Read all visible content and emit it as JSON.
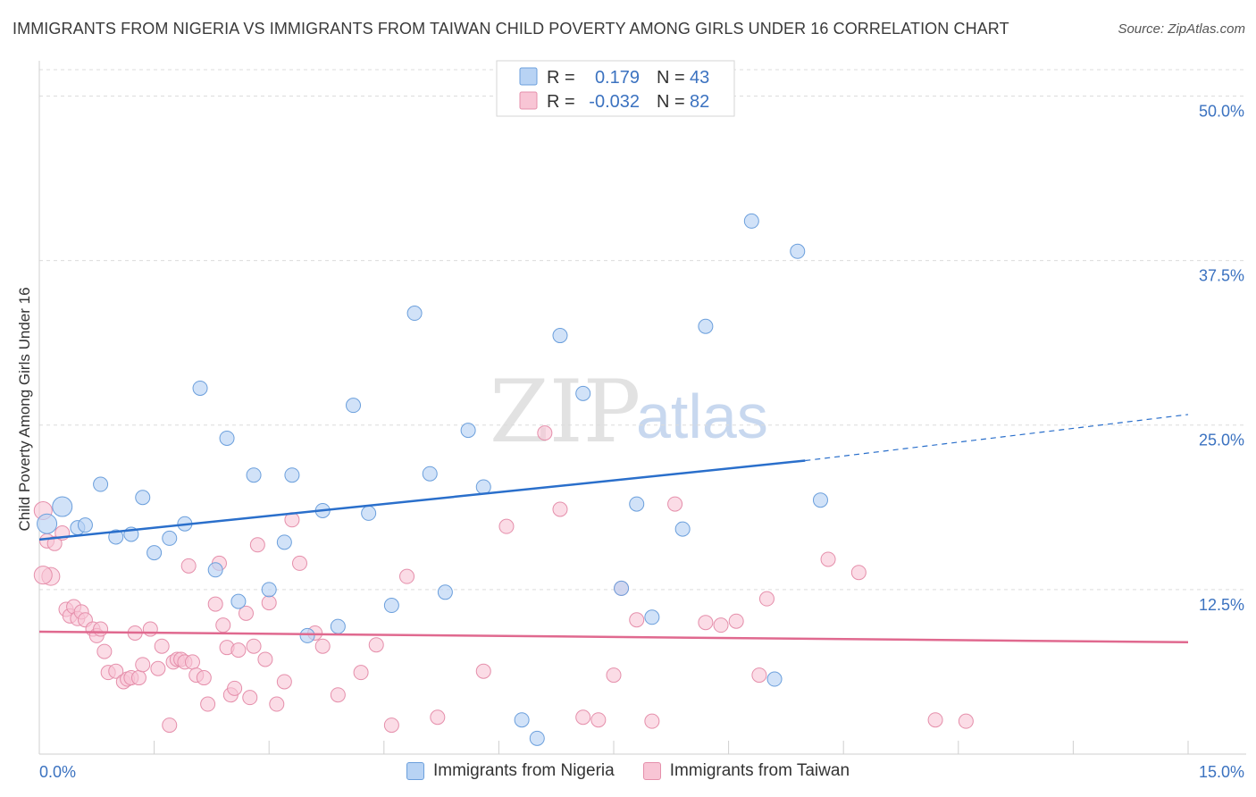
{
  "title": "IMMIGRANTS FROM NIGERIA VS IMMIGRANTS FROM TAIWAN CHILD POVERTY AMONG GIRLS UNDER 16 CORRELATION CHART",
  "source": "Source: ZipAtlas.com",
  "watermark": {
    "zip": "ZIP",
    "atlas": "atlas"
  },
  "colors": {
    "nigeria_fill": "#b8d3f4",
    "nigeria_stroke": "#6b9fdc",
    "nigeria_line": "#2a6fcb",
    "taiwan_fill": "#f8c5d5",
    "taiwan_stroke": "#e58fab",
    "taiwan_line": "#e0698f",
    "axis_label": "#3b72c0"
  },
  "legend": {
    "nigeria": {
      "r_label": "R =",
      "r_value": "0.179",
      "n_label": "N =",
      "n_value": "43"
    },
    "taiwan": {
      "r_label": "R =",
      "r_value": "-0.032",
      "n_label": "N =",
      "n_value": "82"
    }
  },
  "bottom_legend": {
    "nigeria": "Immigrants from Nigeria",
    "taiwan": "Immigrants from Taiwan"
  },
  "chart_data": {
    "type": "scatter",
    "title": "IMMIGRANTS FROM NIGERIA VS IMMIGRANTS FROM TAIWAN CHILD POVERTY AMONG GIRLS UNDER 16 CORRELATION CHART",
    "xlabel": "",
    "ylabel": "Child Poverty Among Girls Under 16",
    "xlim": [
      0,
      15
    ],
    "ylim": [
      0,
      52
    ],
    "x_tick_labels": [
      "0.0%",
      "15.0%"
    ],
    "y_ticks": [
      12.5,
      25.0,
      37.5,
      50.0
    ],
    "y_tick_labels": [
      "12.5%",
      "25.0%",
      "37.5%",
      "50.0%"
    ],
    "grid": true,
    "series": [
      {
        "name": "Immigrants from Nigeria",
        "trend": {
          "x0": 0,
          "y0": 16.3,
          "x1": 10.0,
          "y1": 22.3,
          "dashed_to_x": 15.0,
          "dashed_to_y": 25.8
        },
        "points": [
          [
            0.1,
            17.5
          ],
          [
            0.3,
            18.8
          ],
          [
            0.5,
            17.2
          ],
          [
            0.6,
            17.4
          ],
          [
            0.8,
            20.5
          ],
          [
            1.0,
            16.5
          ],
          [
            1.2,
            16.7
          ],
          [
            1.35,
            19.5
          ],
          [
            1.5,
            15.3
          ],
          [
            1.7,
            16.4
          ],
          [
            1.9,
            17.5
          ],
          [
            2.1,
            27.8
          ],
          [
            2.3,
            14.0
          ],
          [
            2.45,
            24.0
          ],
          [
            2.6,
            11.6
          ],
          [
            2.8,
            21.2
          ],
          [
            3.0,
            12.5
          ],
          [
            3.2,
            16.1
          ],
          [
            3.3,
            21.2
          ],
          [
            3.5,
            9.0
          ],
          [
            3.7,
            18.5
          ],
          [
            3.9,
            9.7
          ],
          [
            4.1,
            26.5
          ],
          [
            4.3,
            18.3
          ],
          [
            4.6,
            11.3
          ],
          [
            4.9,
            33.5
          ],
          [
            5.1,
            21.3
          ],
          [
            5.3,
            12.3
          ],
          [
            5.6,
            24.6
          ],
          [
            5.8,
            20.3
          ],
          [
            6.3,
            2.6
          ],
          [
            6.5,
            1.2
          ],
          [
            6.8,
            31.8
          ],
          [
            7.1,
            27.4
          ],
          [
            7.6,
            12.6
          ],
          [
            7.8,
            19.0
          ],
          [
            8.0,
            10.4
          ],
          [
            8.4,
            17.1
          ],
          [
            8.7,
            32.5
          ],
          [
            9.3,
            40.5
          ],
          [
            9.6,
            5.7
          ],
          [
            9.9,
            38.2
          ],
          [
            10.2,
            19.3
          ]
        ]
      },
      {
        "name": "Immigrants from Taiwan",
        "trend": {
          "x0": 0,
          "y0": 9.3,
          "x1": 15.0,
          "y1": 8.5
        },
        "points": [
          [
            0.05,
            18.5
          ],
          [
            0.1,
            16.2
          ],
          [
            0.15,
            13.5
          ],
          [
            0.2,
            16.0
          ],
          [
            0.3,
            16.8
          ],
          [
            0.35,
            11.0
          ],
          [
            0.4,
            10.5
          ],
          [
            0.45,
            11.2
          ],
          [
            0.5,
            10.3
          ],
          [
            0.55,
            10.8
          ],
          [
            0.6,
            10.2
          ],
          [
            0.7,
            9.5
          ],
          [
            0.75,
            9.0
          ],
          [
            0.8,
            9.5
          ],
          [
            0.85,
            7.8
          ],
          [
            0.9,
            6.2
          ],
          [
            1.0,
            6.3
          ],
          [
            1.1,
            5.5
          ],
          [
            1.15,
            5.7
          ],
          [
            1.2,
            5.8
          ],
          [
            1.25,
            9.2
          ],
          [
            1.3,
            5.8
          ],
          [
            1.35,
            6.8
          ],
          [
            1.45,
            9.5
          ],
          [
            1.55,
            6.5
          ],
          [
            1.6,
            8.2
          ],
          [
            1.7,
            2.2
          ],
          [
            1.75,
            7.0
          ],
          [
            1.8,
            7.2
          ],
          [
            1.85,
            7.2
          ],
          [
            1.9,
            7.0
          ],
          [
            1.95,
            14.3
          ],
          [
            2.0,
            7.0
          ],
          [
            2.05,
            6.0
          ],
          [
            2.15,
            5.8
          ],
          [
            2.2,
            3.8
          ],
          [
            2.3,
            11.4
          ],
          [
            2.35,
            14.5
          ],
          [
            2.4,
            9.8
          ],
          [
            2.45,
            8.1
          ],
          [
            2.5,
            4.5
          ],
          [
            2.55,
            5.0
          ],
          [
            2.6,
            7.9
          ],
          [
            2.7,
            10.7
          ],
          [
            2.75,
            4.3
          ],
          [
            2.8,
            8.2
          ],
          [
            2.85,
            15.9
          ],
          [
            2.95,
            7.2
          ],
          [
            3.0,
            11.5
          ],
          [
            3.1,
            3.8
          ],
          [
            3.2,
            5.5
          ],
          [
            3.3,
            17.8
          ],
          [
            3.4,
            14.5
          ],
          [
            3.6,
            9.2
          ],
          [
            3.7,
            8.2
          ],
          [
            3.9,
            4.5
          ],
          [
            4.2,
            6.2
          ],
          [
            4.4,
            8.3
          ],
          [
            4.6,
            2.2
          ],
          [
            4.8,
            13.5
          ],
          [
            5.2,
            2.8
          ],
          [
            5.8,
            6.3
          ],
          [
            6.1,
            17.3
          ],
          [
            6.6,
            24.4
          ],
          [
            6.8,
            18.6
          ],
          [
            7.1,
            2.8
          ],
          [
            7.3,
            2.6
          ],
          [
            7.5,
            6.0
          ],
          [
            7.6,
            12.6
          ],
          [
            7.8,
            10.2
          ],
          [
            8.0,
            2.5
          ],
          [
            8.3,
            19.0
          ],
          [
            8.7,
            10.0
          ],
          [
            8.9,
            9.8
          ],
          [
            9.1,
            10.1
          ],
          [
            9.4,
            6.0
          ],
          [
            9.5,
            11.8
          ],
          [
            10.3,
            14.8
          ],
          [
            10.7,
            13.8
          ],
          [
            11.7,
            2.6
          ],
          [
            12.1,
            2.5
          ],
          [
            0.05,
            13.6
          ]
        ]
      }
    ]
  }
}
